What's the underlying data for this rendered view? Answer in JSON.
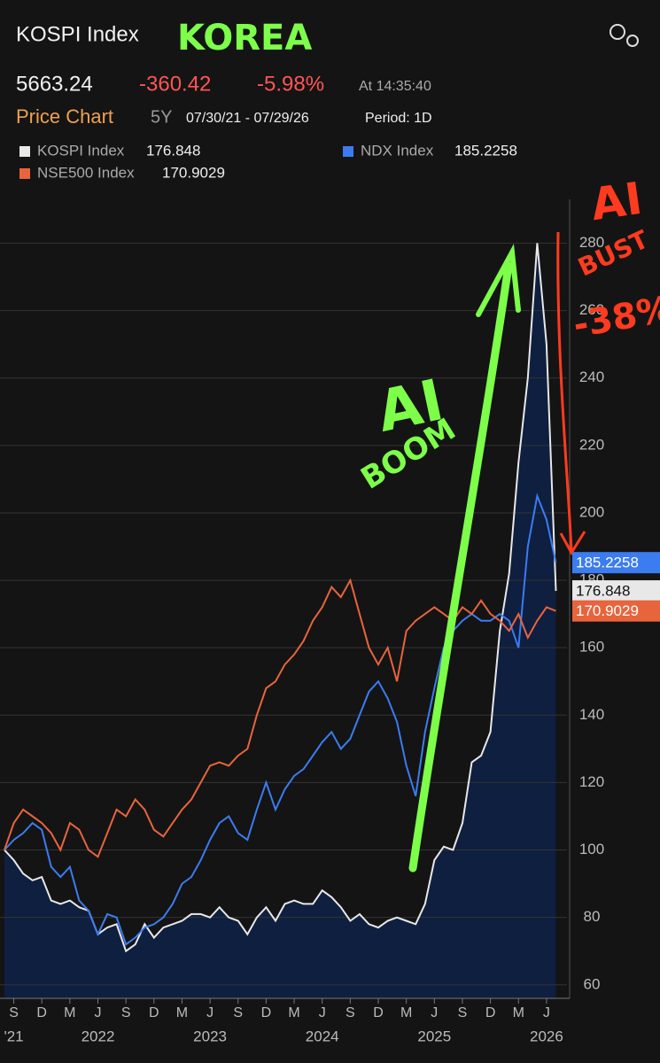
{
  "header": {
    "title": "KOSPI Index",
    "price": "5663.24",
    "change": "-360.42",
    "change_pct": "-5.98%",
    "time": "At 14:35:40",
    "tab": "Price Chart",
    "range": "5Y",
    "dates": "07/30/21 - 07/29/26",
    "period": "Period: 1D"
  },
  "chart_data": {
    "type": "line",
    "x": [
      "2021-08",
      "2021-09",
      "2021-10",
      "2021-11",
      "2021-12",
      "2022-01",
      "2022-02",
      "2022-03",
      "2022-04",
      "2022-05",
      "2022-06",
      "2022-07",
      "2022-08",
      "2022-09",
      "2022-10",
      "2022-11",
      "2022-12",
      "2023-01",
      "2023-02",
      "2023-03",
      "2023-04",
      "2023-05",
      "2023-06",
      "2023-07",
      "2023-08",
      "2023-09",
      "2023-10",
      "2023-11",
      "2023-12",
      "2024-01",
      "2024-02",
      "2024-03",
      "2024-04",
      "2024-05",
      "2024-06",
      "2024-07",
      "2024-08",
      "2024-09",
      "2024-10",
      "2024-11",
      "2024-12",
      "2025-01",
      "2025-02",
      "2025-03",
      "2025-04",
      "2025-05",
      "2025-06",
      "2025-07",
      "2025-08",
      "2025-09",
      "2025-10",
      "2025-11",
      "2025-12",
      "2026-01",
      "2026-02",
      "2026-03",
      "2026-04",
      "2026-05",
      "2026-06",
      "2026-07"
    ],
    "series": [
      {
        "name": "KOSPI Index",
        "color": "#e8e8e8",
        "area": true,
        "last": 176.848,
        "values": [
          100,
          97,
          93,
          91,
          92,
          85,
          84,
          85,
          83,
          82,
          75,
          77,
          78,
          70,
          72,
          78,
          74,
          77,
          78,
          79,
          81,
          81,
          80,
          83,
          80,
          79,
          75,
          80,
          83,
          79,
          84,
          85,
          84,
          84,
          88,
          86,
          83,
          79,
          81,
          78,
          77,
          79,
          80,
          79,
          78,
          84,
          97,
          101,
          100,
          108,
          126,
          128,
          135,
          165,
          182,
          215,
          240,
          280,
          250,
          176.848
        ]
      },
      {
        "name": "NDX Index",
        "color": "#3b7cf0",
        "area": false,
        "last": 185.2258,
        "values": [
          100,
          103,
          105,
          108,
          106,
          95,
          92,
          95,
          85,
          82,
          75,
          81,
          80,
          72,
          74,
          77,
          78,
          80,
          84,
          90,
          92,
          97,
          103,
          108,
          110,
          105,
          103,
          112,
          120,
          112,
          118,
          122,
          124,
          128,
          132,
          135,
          130,
          133,
          140,
          147,
          150,
          145,
          138,
          125,
          116,
          135,
          148,
          160,
          165,
          168,
          170,
          168,
          168,
          170,
          168,
          160,
          190,
          205,
          198,
          185.2258
        ]
      },
      {
        "name": "NSE500 Index",
        "color": "#e8643c",
        "area": false,
        "last": 170.9029,
        "values": [
          100,
          108,
          112,
          110,
          108,
          105,
          100,
          108,
          106,
          100,
          98,
          105,
          112,
          110,
          115,
          112,
          106,
          104,
          108,
          112,
          115,
          120,
          125,
          126,
          125,
          128,
          130,
          140,
          148,
          150,
          155,
          158,
          162,
          168,
          172,
          178,
          175,
          180,
          170,
          160,
          155,
          160,
          150,
          165,
          168,
          170,
          172,
          170,
          168,
          172,
          170,
          174,
          170,
          168,
          165,
          170,
          163,
          168,
          172,
          170.9029
        ]
      }
    ],
    "ylim": [
      56,
      293
    ],
    "yticks": [
      60,
      80,
      100,
      120,
      140,
      160,
      180,
      200,
      220,
      240,
      260,
      280
    ],
    "grid": true,
    "xticks": [
      {
        "value": "2021-09",
        "label": "S"
      },
      {
        "value": "2021-12",
        "label": "D"
      },
      {
        "value": "2022-03",
        "label": "M"
      },
      {
        "value": "2022-06",
        "label": "J"
      },
      {
        "value": "2022-09",
        "label": "S"
      },
      {
        "value": "2022-12",
        "label": "D"
      },
      {
        "value": "2023-03",
        "label": "M"
      },
      {
        "value": "2023-06",
        "label": "J"
      },
      {
        "value": "2023-09",
        "label": "S"
      },
      {
        "value": "2023-12",
        "label": "D"
      },
      {
        "value": "2024-03",
        "label": "M"
      },
      {
        "value": "2024-06",
        "label": "J"
      },
      {
        "value": "2024-09",
        "label": "S"
      },
      {
        "value": "2024-12",
        "label": "D"
      },
      {
        "value": "2025-03",
        "label": "M"
      },
      {
        "value": "2025-06",
        "label": "J"
      },
      {
        "value": "2025-09",
        "label": "S"
      },
      {
        "value": "2025-12",
        "label": "D"
      },
      {
        "value": "2026-03",
        "label": "M"
      },
      {
        "value": "2026-06",
        "label": "J"
      }
    ],
    "xyears": [
      {
        "value": "2021-09",
        "label": "'21"
      },
      {
        "value": "2022-06",
        "label": "2022"
      },
      {
        "value": "2023-06",
        "label": "2023"
      },
      {
        "value": "2024-06",
        "label": "2024"
      },
      {
        "value": "2025-06",
        "label": "2025"
      },
      {
        "value": "2026-06",
        "label": "2026"
      }
    ],
    "annotations": [
      {
        "text": "KOREA",
        "color": "#7dff4a"
      },
      {
        "text": "AI",
        "color": "#7dff4a"
      },
      {
        "text": "BOOM",
        "color": "#7dff4a"
      },
      {
        "text": "AI",
        "color": "#ff3b1f"
      },
      {
        "text": "BUST",
        "color": "#ff3b1f"
      },
      {
        "text": "-38%",
        "color": "#ff3b1f"
      }
    ]
  }
}
